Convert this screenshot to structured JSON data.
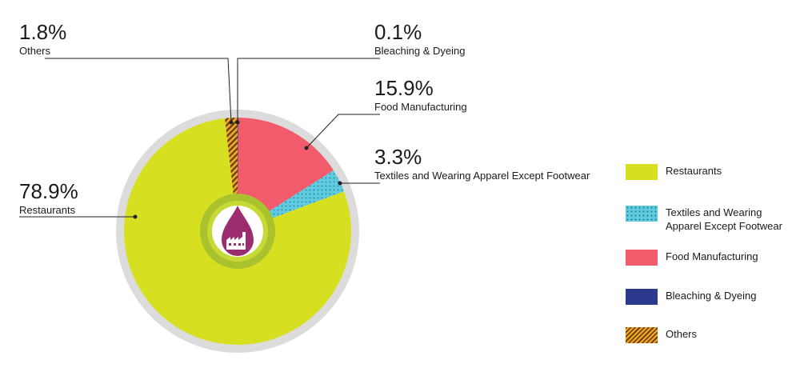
{
  "chart_data": {
    "type": "pie",
    "categories": [
      "Restaurants",
      "Textiles and Wearing Apparel Except Footwear",
      "Food Manufacturing",
      "Bleaching & Dyeing",
      "Others"
    ],
    "values": [
      78.9,
      3.3,
      15.9,
      0.1,
      1.8
    ],
    "value_labels": [
      "78.9%",
      "3.3%",
      "15.9%",
      "0.1%",
      "1.8%"
    ],
    "colors": [
      "#d6e021",
      "#5fcbe0",
      "#f15b6c",
      "#2b3a8f",
      "#f0a223"
    ],
    "legend": {
      "placement": "right",
      "items": [
        {
          "label": "Restaurants"
        },
        {
          "label": "Textiles and Wearing Apparel Except Footwear"
        },
        {
          "label": "Food Manufacturing"
        },
        {
          "label": "Bleaching & Dyeing"
        },
        {
          "label": "Others"
        }
      ]
    },
    "center_icon": "factory-droplet-icon"
  }
}
